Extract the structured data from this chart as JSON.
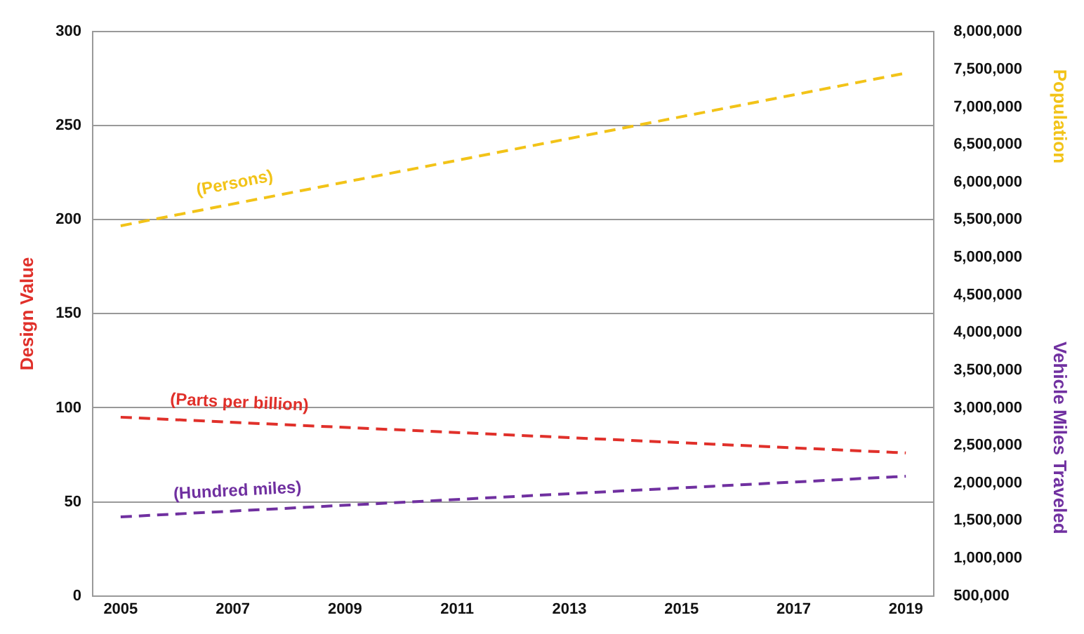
{
  "chart_data": {
    "type": "line",
    "ylabel": "Design Value",
    "y2label": "Population",
    "annotations": [
      "Vehicle Miles Traveled"
    ],
    "xlim": [
      2004.5,
      2019.5
    ],
    "xticks": [
      2005,
      2007,
      2009,
      2011,
      2013,
      2015,
      2017,
      2019
    ],
    "ylim": [
      0,
      300
    ],
    "yticks": [
      0,
      50,
      100,
      150,
      200,
      250,
      300
    ],
    "y2lim": [
      500000,
      8000000
    ],
    "y2ticks": [
      {
        "value": 500000,
        "label": "500,000"
      },
      {
        "value": 1000000,
        "label": "1,000,000"
      },
      {
        "value": 1500000,
        "label": "1,500,000"
      },
      {
        "value": 2000000,
        "label": "2,000,000"
      },
      {
        "value": 2500000,
        "label": "2,500,000"
      },
      {
        "value": 3000000,
        "label": "3,000,000"
      },
      {
        "value": 3500000,
        "label": "3,500,000"
      },
      {
        "value": 4000000,
        "label": "4,000,000"
      },
      {
        "value": 4500000,
        "label": "4,500,000"
      },
      {
        "value": 5000000,
        "label": "5,000,000"
      },
      {
        "value": 5500000,
        "label": "5,500,000"
      },
      {
        "value": 6000000,
        "label": "6,000,000"
      },
      {
        "value": 6500000,
        "label": "6,500,000"
      },
      {
        "value": 7000000,
        "label": "7,000,000"
      },
      {
        "value": 7500000,
        "label": "7,500,000"
      },
      {
        "value": 8000000,
        "label": "8,000,000"
      }
    ],
    "x": [
      2005,
      2019
    ],
    "grid": "y",
    "legend": false,
    "marker": "none",
    "series": [
      {
        "name": "(Persons)",
        "color": "#f2c318",
        "axis": "y2",
        "line_style": "dashed",
        "values": [
          5420000,
          7450000
        ]
      },
      {
        "name": "(Parts per billion)",
        "color": "#e0302a",
        "axis": "y",
        "line_style": "dashed",
        "values": [
          95,
          76
        ]
      },
      {
        "name": "(Hundred miles)",
        "color": "#7030a0",
        "axis": "y2",
        "line_style": "dashed",
        "values": [
          1550000,
          2090000
        ]
      }
    ]
  }
}
